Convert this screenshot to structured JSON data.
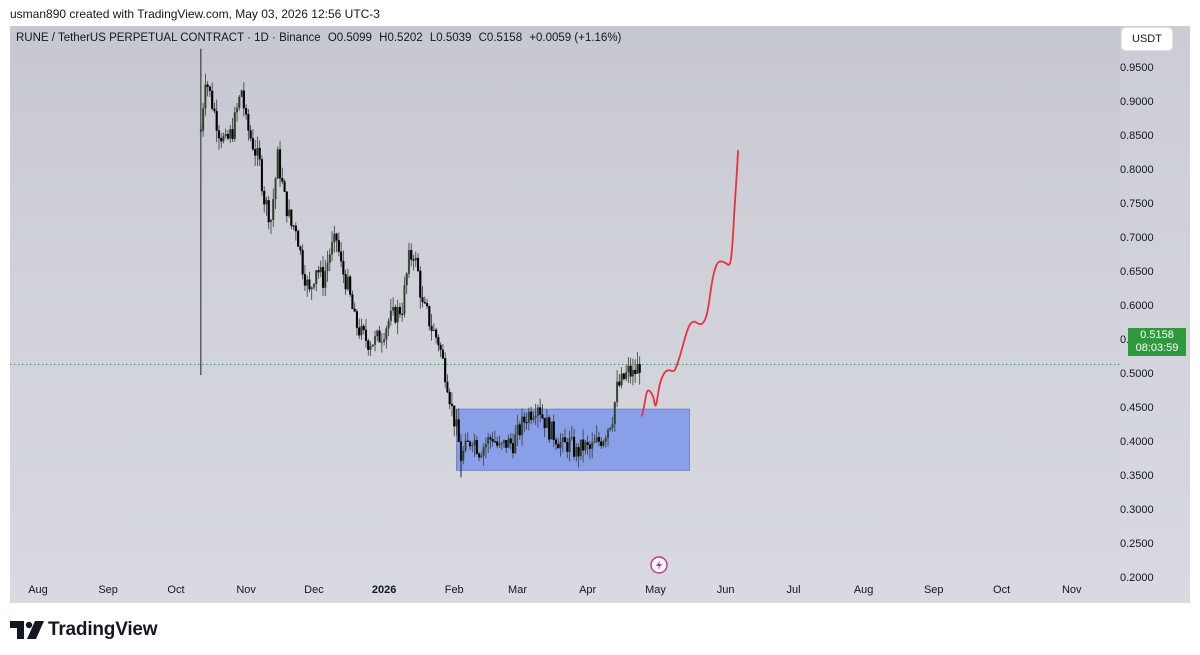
{
  "header": {
    "created_text": "usman890 created with TradingView.com, May 03, 2026 12:56 UTC-3"
  },
  "legend": {
    "symbol": "RUNE / TetherUS PERPETUAL CONTRACT · 1D · Binance",
    "open": "O0.5099",
    "high": "H0.5202",
    "low": "L0.5039",
    "close": "C0.5158",
    "change": "+0.0059 (+1.16%)"
  },
  "currency_button": "USDT",
  "last_price": {
    "price": "0.5158",
    "countdown": "08:03:59"
  },
  "footer": {
    "brand": "TradingView"
  },
  "chart_data": {
    "type": "candlestick",
    "symbol": "RUNE / TetherUS PERPETUAL CONTRACT",
    "interval": "1D",
    "exchange": "Binance",
    "price_ticks": [
      "0.9500",
      "0.9000",
      "0.8500",
      "0.8000",
      "0.7500",
      "0.7000",
      "0.6500",
      "0.6000",
      "0.5500",
      "0.5000",
      "0.4500",
      "0.4000",
      "0.3500",
      "0.3000",
      "0.2500",
      "0.2000"
    ],
    "time_ticks": [
      {
        "label": "Aug",
        "idx": 0
      },
      {
        "label": "Sep",
        "idx": 31
      },
      {
        "label": "Oct",
        "idx": 61
      },
      {
        "label": "Nov",
        "idx": 92
      },
      {
        "label": "Dec",
        "idx": 122
      },
      {
        "label": "2026",
        "idx": 153,
        "bold": true
      },
      {
        "label": "Feb",
        "idx": 184
      },
      {
        "label": "Mar",
        "idx": 212
      },
      {
        "label": "Apr",
        "idx": 243
      },
      {
        "label": "May",
        "idx": 273
      },
      {
        "label": "Jun",
        "idx": 304
      },
      {
        "label": "Jul",
        "idx": 334
      },
      {
        "label": "Aug",
        "idx": 365
      },
      {
        "label": "Sep",
        "idx": 396
      },
      {
        "label": "Oct",
        "idx": 426
      },
      {
        "label": "Nov",
        "idx": 457
      }
    ],
    "ylim": [
      0.2,
      0.98
    ],
    "colors": {
      "up": "#2f3b2f",
      "down": "#000000",
      "wick": "#3a3a3a",
      "zone_fill": "#7b97ea",
      "zone_stroke": "#6f86c9",
      "projection": "#e8323c",
      "last_price_line": "#2e9a3e"
    },
    "first_candle_idx": 72,
    "price_path": [
      [
        72,
        0.86
      ],
      [
        74,
        0.94
      ],
      [
        77,
        0.9
      ],
      [
        80,
        0.86
      ],
      [
        83,
        0.84
      ],
      [
        86,
        0.86
      ],
      [
        90,
        0.92
      ],
      [
        92,
        0.87
      ],
      [
        95,
        0.84
      ],
      [
        98,
        0.81
      ],
      [
        100,
        0.76
      ],
      [
        103,
        0.73
      ],
      [
        106,
        0.82
      ],
      [
        109,
        0.76
      ],
      [
        112,
        0.72
      ],
      [
        114,
        0.72
      ],
      [
        117,
        0.66
      ],
      [
        120,
        0.62
      ],
      [
        123,
        0.66
      ],
      [
        126,
        0.64
      ],
      [
        129,
        0.68
      ],
      [
        132,
        0.7
      ],
      [
        134,
        0.66
      ],
      [
        137,
        0.63
      ],
      [
        140,
        0.58
      ],
      [
        143,
        0.56
      ],
      [
        146,
        0.55
      ],
      [
        149,
        0.55
      ],
      [
        152,
        0.56
      ],
      [
        155,
        0.58
      ],
      [
        158,
        0.59
      ],
      [
        161,
        0.6
      ],
      [
        164,
        0.67
      ],
      [
        166,
        0.68
      ],
      [
        168,
        0.65
      ],
      [
        170,
        0.6
      ],
      [
        172,
        0.59
      ],
      [
        174,
        0.57
      ],
      [
        177,
        0.55
      ],
      [
        179,
        0.52
      ],
      [
        181,
        0.49
      ],
      [
        183,
        0.45
      ],
      [
        185,
        0.42
      ],
      [
        187,
        0.38
      ],
      [
        189,
        0.39
      ],
      [
        192,
        0.41
      ],
      [
        195,
        0.39
      ],
      [
        198,
        0.4
      ],
      [
        201,
        0.41
      ],
      [
        204,
        0.39
      ],
      [
        207,
        0.4
      ],
      [
        210,
        0.4
      ],
      [
        213,
        0.42
      ],
      [
        216,
        0.44
      ],
      [
        219,
        0.45
      ],
      [
        221,
        0.46
      ],
      [
        223,
        0.44
      ],
      [
        226,
        0.42
      ],
      [
        229,
        0.41
      ],
      [
        232,
        0.395
      ],
      [
        235,
        0.4
      ],
      [
        238,
        0.385
      ],
      [
        241,
        0.395
      ],
      [
        244,
        0.39
      ],
      [
        247,
        0.4
      ],
      [
        250,
        0.41
      ],
      [
        252,
        0.425
      ],
      [
        254,
        0.44
      ],
      [
        256,
        0.48
      ],
      [
        258,
        0.49
      ],
      [
        261,
        0.505
      ],
      [
        263,
        0.5
      ],
      [
        265,
        0.51
      ],
      [
        266,
        0.516
      ]
    ],
    "spikes": [
      {
        "idx": 72,
        "high": 0.98,
        "low": 0.5
      },
      {
        "idx": 187,
        "high": 0.4,
        "low": 0.35
      }
    ],
    "consolidation_zone": {
      "x_start_idx": 185,
      "x_end_idx": 288,
      "y_low": 0.36,
      "y_high": 0.45
    },
    "projection_path": [
      [
        267,
        0.44
      ],
      [
        268,
        0.455
      ],
      [
        269,
        0.475
      ],
      [
        270,
        0.479
      ],
      [
        272,
        0.47
      ],
      [
        273,
        0.45
      ],
      [
        274,
        0.47
      ],
      [
        275,
        0.49
      ],
      [
        277,
        0.505
      ],
      [
        279,
        0.508
      ],
      [
        281,
        0.505
      ],
      [
        282,
        0.51
      ],
      [
        284,
        0.53
      ],
      [
        286,
        0.555
      ],
      [
        288,
        0.575
      ],
      [
        290,
        0.58
      ],
      [
        292,
        0.575
      ],
      [
        294,
        0.575
      ],
      [
        296,
        0.59
      ],
      [
        298,
        0.64
      ],
      [
        300,
        0.665
      ],
      [
        302,
        0.668
      ],
      [
        304,
        0.665
      ],
      [
        306,
        0.66
      ],
      [
        307,
        0.69
      ],
      [
        308,
        0.75
      ],
      [
        309,
        0.8
      ],
      [
        309.5,
        0.83
      ]
    ]
  }
}
